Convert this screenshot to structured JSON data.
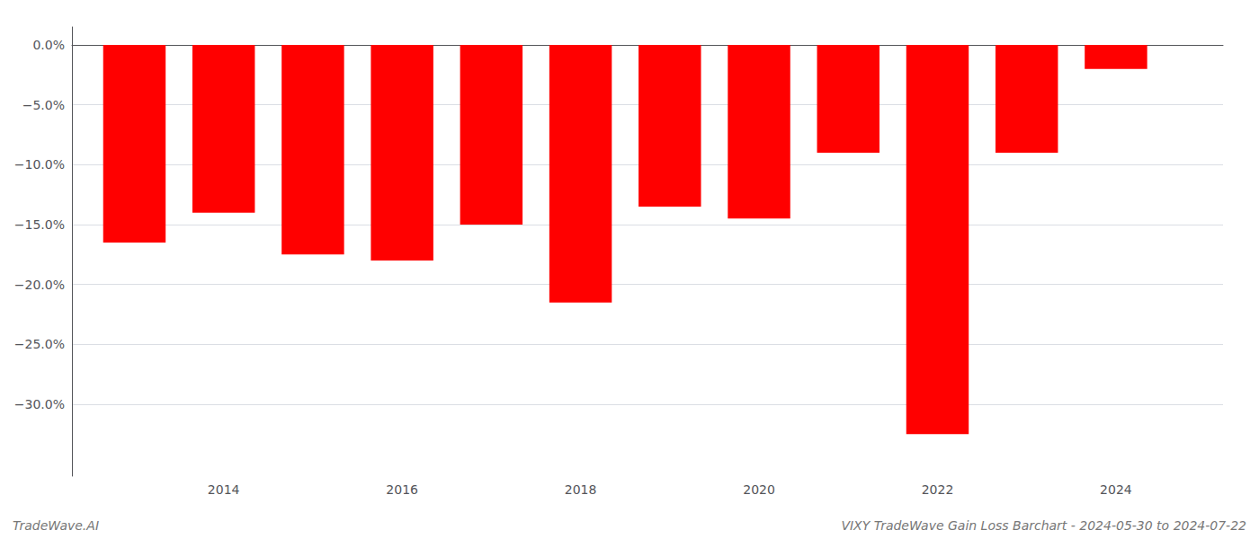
{
  "chart_data": {
    "type": "bar",
    "x": [
      2013,
      2014,
      2015,
      2016,
      2017,
      2018,
      2019,
      2020,
      2021,
      2022,
      2023,
      2024
    ],
    "values": [
      -16.5,
      -14.0,
      -17.5,
      -18.0,
      -15.0,
      -21.5,
      -13.5,
      -14.5,
      -9.0,
      -32.5,
      -9.0,
      -2.0
    ],
    "color": "#ff0000",
    "xlim": [
      2012.3,
      2025.2
    ],
    "xticks": [
      2014,
      2016,
      2018,
      2020,
      2022,
      2024
    ],
    "ylim": [
      -36,
      1.5
    ],
    "yticks": [
      {
        "value": 0.0,
        "label": "0.0%"
      },
      {
        "value": -5.0,
        "label": "−5.0%"
      },
      {
        "value": -10.0,
        "label": "−10.0%"
      },
      {
        "value": -15.0,
        "label": "−15.0%"
      },
      {
        "value": -20.0,
        "label": "−20.0%"
      },
      {
        "value": -25.0,
        "label": "−25.0%"
      },
      {
        "value": -30.0,
        "label": "−30.0%"
      }
    ],
    "grid": true,
    "annotations": [
      "TradeWave.AI",
      "VIXY TradeWave Gain Loss Barchart - 2024-05-30 to 2024-07-22"
    ]
  }
}
